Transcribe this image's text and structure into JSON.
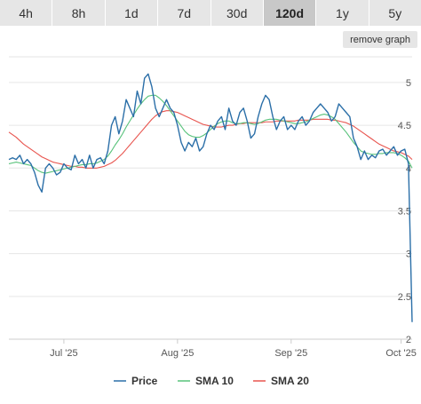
{
  "ranges": [
    "4h",
    "8h",
    "1d",
    "7d",
    "30d",
    "120d",
    "1y",
    "5y"
  ],
  "active_range": "120d",
  "remove_label": "remove graph",
  "chart_data": {
    "type": "line",
    "title": "",
    "xlabel": "",
    "ylabel": "",
    "x_tick_labels": [
      "Jul '25",
      "Aug '25",
      "Sep '25",
      "Oct '25"
    ],
    "y_ticks": [
      2,
      2.5,
      3,
      3.5,
      4,
      4.5,
      5
    ],
    "ylim": [
      2,
      5.3
    ],
    "grid": true,
    "legend": "bottom",
    "series": [
      {
        "name": "Price",
        "color": "#2b6fa8",
        "values": [
          4.1,
          4.12,
          4.1,
          4.15,
          4.05,
          4.1,
          4.05,
          3.95,
          3.8,
          3.72,
          4.0,
          4.05,
          4.0,
          3.92,
          3.95,
          4.05,
          4.0,
          3.98,
          4.15,
          4.05,
          4.1,
          4.0,
          4.15,
          4.0,
          4.1,
          4.12,
          4.05,
          4.2,
          4.5,
          4.6,
          4.4,
          4.55,
          4.8,
          4.7,
          4.6,
          4.9,
          4.75,
          5.05,
          5.1,
          4.95,
          4.7,
          4.6,
          4.7,
          4.8,
          4.7,
          4.65,
          4.5,
          4.3,
          4.2,
          4.3,
          4.25,
          4.35,
          4.2,
          4.25,
          4.4,
          4.5,
          4.45,
          4.55,
          4.6,
          4.45,
          4.7,
          4.55,
          4.5,
          4.65,
          4.7,
          4.55,
          4.35,
          4.4,
          4.6,
          4.75,
          4.85,
          4.8,
          4.6,
          4.45,
          4.55,
          4.6,
          4.45,
          4.5,
          4.45,
          4.55,
          4.6,
          4.5,
          4.55,
          4.65,
          4.7,
          4.75,
          4.7,
          4.65,
          4.55,
          4.6,
          4.75,
          4.7,
          4.65,
          4.6,
          4.35,
          4.25,
          4.1,
          4.2,
          4.1,
          4.15,
          4.12,
          4.2,
          4.22,
          4.15,
          4.2,
          4.25,
          4.15,
          4.2,
          4.22,
          4.05,
          2.2
        ]
      },
      {
        "name": "SMA 10",
        "color": "#57c27a",
        "values": [
          4.05,
          4.06,
          4.07,
          4.06,
          4.05,
          4.04,
          4.03,
          4.0,
          3.97,
          3.95,
          3.94,
          3.95,
          3.96,
          3.97,
          3.98,
          3.99,
          4.0,
          4.01,
          4.02,
          4.03,
          4.04,
          4.04,
          4.05,
          4.05,
          4.06,
          4.08,
          4.1,
          4.14,
          4.2,
          4.27,
          4.33,
          4.4,
          4.48,
          4.55,
          4.62,
          4.69,
          4.75,
          4.8,
          4.84,
          4.85,
          4.85,
          4.82,
          4.78,
          4.73,
          4.67,
          4.61,
          4.55,
          4.49,
          4.43,
          4.39,
          4.37,
          4.36,
          4.36,
          4.38,
          4.41,
          4.45,
          4.49,
          4.52,
          4.54,
          4.55,
          4.55,
          4.53,
          4.52,
          4.52,
          4.53,
          4.53,
          4.52,
          4.51,
          4.52,
          4.54,
          4.56,
          4.57,
          4.57,
          4.57,
          4.56,
          4.55,
          4.54,
          4.53,
          4.52,
          4.52,
          4.53,
          4.54,
          4.56,
          4.58,
          4.6,
          4.62,
          4.63,
          4.62,
          4.6,
          4.57,
          4.52,
          4.47,
          4.42,
          4.36,
          4.3,
          4.25,
          4.2,
          4.18,
          4.17,
          4.16,
          4.16,
          4.17,
          4.17,
          4.18,
          4.18,
          4.18,
          4.17,
          4.15,
          4.12,
          4.08,
          4.0
        ]
      },
      {
        "name": "SMA 20",
        "color": "#e8544e",
        "values": [
          4.42,
          4.39,
          4.36,
          4.32,
          4.28,
          4.25,
          4.22,
          4.19,
          4.16,
          4.13,
          4.11,
          4.09,
          4.07,
          4.06,
          4.05,
          4.04,
          4.03,
          4.02,
          4.02,
          4.01,
          4.01,
          4.0,
          4.0,
          4.0,
          4.0,
          4.01,
          4.02,
          4.04,
          4.06,
          4.09,
          4.13,
          4.17,
          4.22,
          4.27,
          4.32,
          4.37,
          4.42,
          4.47,
          4.52,
          4.57,
          4.61,
          4.64,
          4.66,
          4.67,
          4.67,
          4.66,
          4.65,
          4.63,
          4.61,
          4.59,
          4.57,
          4.55,
          4.53,
          4.51,
          4.5,
          4.49,
          4.48,
          4.48,
          4.48,
          4.49,
          4.5,
          4.5,
          4.51,
          4.52,
          4.52,
          4.53,
          4.53,
          4.53,
          4.53,
          4.53,
          4.54,
          4.54,
          4.54,
          4.55,
          4.55,
          4.55,
          4.55,
          4.55,
          4.55,
          4.56,
          4.56,
          4.56,
          4.56,
          4.57,
          4.57,
          4.57,
          4.57,
          4.57,
          4.56,
          4.56,
          4.55,
          4.54,
          4.53,
          4.51,
          4.49,
          4.46,
          4.43,
          4.4,
          4.37,
          4.34,
          4.31,
          4.28,
          4.26,
          4.24,
          4.22,
          4.2,
          4.19,
          4.18,
          4.16,
          4.14,
          4.1
        ]
      }
    ]
  }
}
